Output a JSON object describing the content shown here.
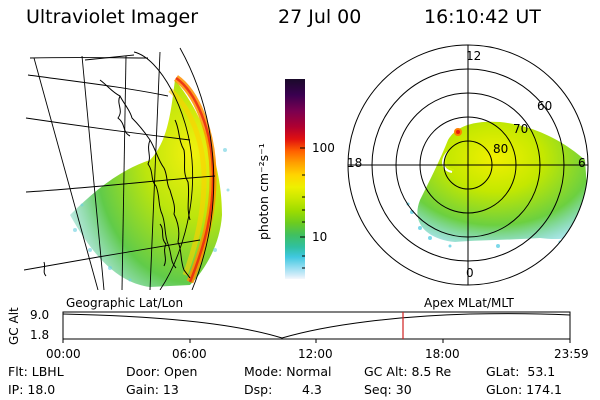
{
  "header": {
    "instrument": "Ultraviolet Imager",
    "date": "27 Jul 00",
    "time": "16:10:42 UT"
  },
  "geo_panel": {
    "label": "Geographic Lat/Lon"
  },
  "polar_panel": {
    "label": "Apex MLat/MLT",
    "mlt_labels": [
      "12",
      "18",
      "6",
      "0"
    ],
    "lat_labels": [
      "60",
      "70",
      "80"
    ]
  },
  "colorbar": {
    "unit_label": "photon cm⁻²s⁻¹",
    "tick_labels": [
      "100",
      "10"
    ],
    "colors": [
      "#1a0a2a",
      "#3a0050",
      "#7a0050",
      "#b00030",
      "#e01010",
      "#ff6000",
      "#ffa000",
      "#ffd400",
      "#eef000",
      "#c8e800",
      "#9cdc00",
      "#6ccc20",
      "#40c060",
      "#30c0a0",
      "#40c8e0",
      "#90dcf0",
      "#d0ecf8",
      "#f4f8fc"
    ]
  },
  "timeline": {
    "axis_label": "GC Alt",
    "y_top": "9.0",
    "y_bottom": "1.8",
    "x_ticks": [
      "00:00",
      "06:00",
      "12:00",
      "18:00",
      "23:59"
    ],
    "current_marker_color": "#d02020"
  },
  "info": {
    "flt": "Flt: LBHL",
    "ip": "IP: 18.0",
    "door": "Door: Open",
    "gain": "Gain: 13",
    "mode": "Mode: Normal",
    "dsp_label": "Dsp:",
    "dsp_value": "4.3",
    "gc_alt": "GC Alt: 8.5 Re",
    "seq": "Seq: 30",
    "glat": "GLat:  53.1",
    "glon": "GLon: 174.1"
  }
}
